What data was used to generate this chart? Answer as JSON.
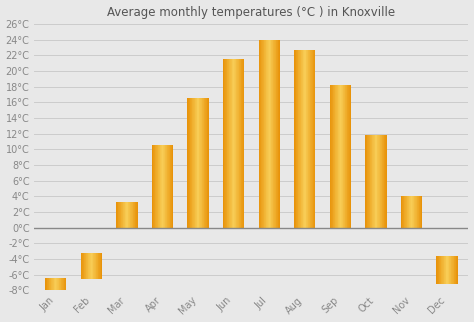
{
  "title": "Average monthly temperatures (°C ) in Knoxville",
  "months": [
    "Jan",
    "Feb",
    "Mar",
    "Apr",
    "May",
    "Jun",
    "Jul",
    "Aug",
    "Sep",
    "Oct",
    "Nov",
    "Dec"
  ],
  "values": [
    -6.5,
    -3.3,
    3.2,
    10.6,
    16.5,
    21.5,
    24.0,
    22.7,
    18.2,
    11.8,
    4.0,
    -3.6
  ],
  "bar_color_light": "#FFD966",
  "bar_color_main": "#FDB827",
  "bar_color_dark": "#E8930A",
  "background_color": "#e8e8e8",
  "plot_bg_color": "#e8e8e8",
  "grid_color": "#cccccc",
  "ylim": [
    -8,
    26
  ],
  "yticks": [
    -8,
    -6,
    -4,
    -2,
    0,
    2,
    4,
    6,
    8,
    10,
    12,
    14,
    16,
    18,
    20,
    22,
    24,
    26
  ],
  "ytick_labels": [
    "-8°C",
    "-6°C",
    "-4°C",
    "-2°C",
    "0°C",
    "2°C",
    "4°C",
    "6°C",
    "8°C",
    "10°C",
    "12°C",
    "14°C",
    "16°C",
    "18°C",
    "20°C",
    "22°C",
    "24°C",
    "26°C"
  ],
  "title_fontsize": 8.5,
  "tick_fontsize": 7.0,
  "tick_color": "#888888",
  "zero_line_color": "#888888",
  "bar_width": 0.6
}
